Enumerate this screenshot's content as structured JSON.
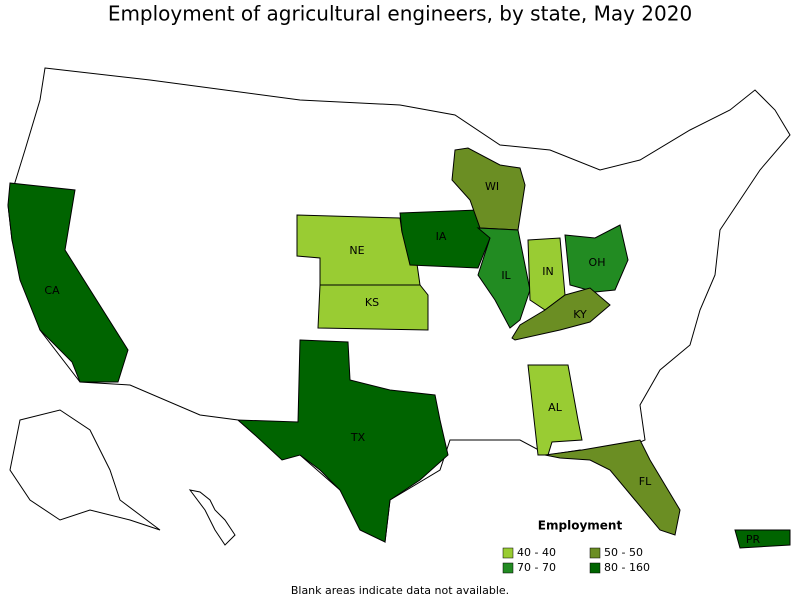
{
  "title": "Employment of agricultural engineers, by state, May 2020",
  "states": [
    {
      "label": "CA",
      "class": 3
    },
    {
      "label": "NE",
      "class": 0
    },
    {
      "label": "KS",
      "class": 0
    },
    {
      "label": "IA",
      "class": 3
    },
    {
      "label": "WI",
      "class": 1
    },
    {
      "label": "IL",
      "class": 2
    },
    {
      "label": "IN",
      "class": 0
    },
    {
      "label": "OH",
      "class": 2
    },
    {
      "label": "KY",
      "class": 1
    },
    {
      "label": "TX",
      "class": 3
    },
    {
      "label": "AL",
      "class": 0
    },
    {
      "label": "FL",
      "class": 1
    },
    {
      "label": "PR",
      "class": 3
    }
  ],
  "legend": {
    "title": "Employment",
    "items": [
      {
        "label": "40 - 40",
        "color": "#99cc33"
      },
      {
        "label": "50 - 50",
        "color": "#6b8e23"
      },
      {
        "label": "70 - 70",
        "color": "#228b22"
      },
      {
        "label": "80 - 160",
        "color": "#006400"
      }
    ]
  },
  "note": "Blank areas indicate data not available."
}
